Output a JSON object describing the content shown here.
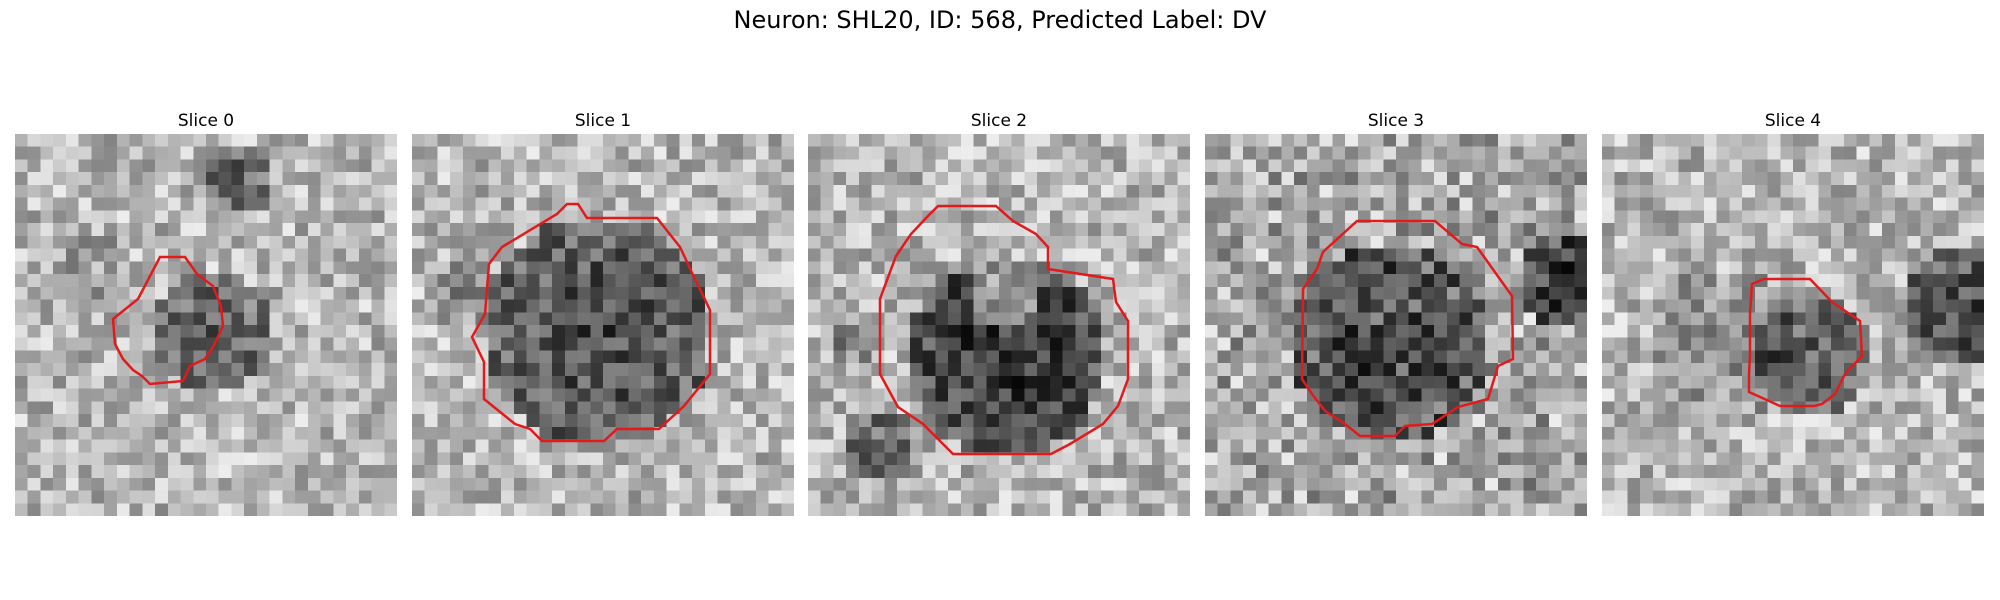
{
  "figure": {
    "title": "Neuron: SHL20, ID: 568, Predicted Label: DV"
  },
  "colors": {
    "contour": "#e31a1c",
    "colormap": "grayscale"
  },
  "panels": [
    {
      "title": "Slice 0"
    },
    {
      "title": "Slice 1"
    },
    {
      "title": "Slice 2"
    },
    {
      "title": "Slice 3"
    },
    {
      "title": "Slice 4"
    }
  ]
}
